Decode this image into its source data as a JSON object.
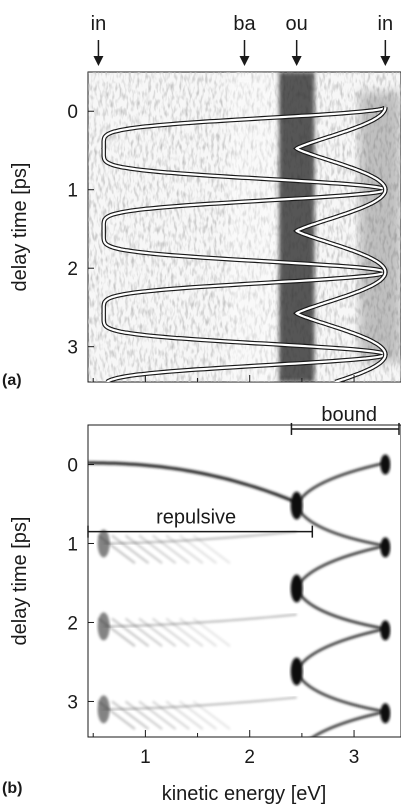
{
  "chart_data": [
    {
      "type": "heatmap",
      "panel_label": "(a)",
      "ylabel": "delay time [ps]",
      "x_ticks": [
        1,
        2,
        3
      ],
      "y_ticks": [
        "0",
        "1",
        "2",
        "3"
      ],
      "xlim": [
        0.45,
        3.45
      ],
      "ylim": [
        -0.5,
        3.45
      ],
      "top_markers": [
        {
          "label": "in",
          "x": 0.55
        },
        {
          "label": "ba",
          "x": 1.95
        },
        {
          "label": "ou",
          "x": 2.45
        },
        {
          "label": "in",
          "x": 3.3
        }
      ],
      "overlay_trajectory": {
        "x_min": 0.6,
        "x_outer": 3.3,
        "x_turn": 2.45,
        "period_ps": 1.05,
        "phase_ps": -0.05,
        "t_range": [
          -0.05,
          3.45
        ]
      },
      "colors": {
        "background": "#ffffff",
        "signal": "#1a1a1a",
        "curve": "#ffffff"
      }
    },
    {
      "type": "heatmap",
      "panel_label": "(b)",
      "ylabel": "delay time [ps]",
      "xlabel": "kinetic energy [eV]",
      "x_ticks": [
        1,
        2,
        3
      ],
      "y_ticks": [
        "0",
        "1",
        "2",
        "3"
      ],
      "xlim": [
        0.45,
        3.45
      ],
      "ylim": [
        -0.5,
        3.45
      ],
      "annotations": [
        {
          "label": "bound",
          "x_start": 2.4,
          "x_end": 3.45,
          "y": -0.45
        },
        {
          "label": "repulsive",
          "x_start": 0.45,
          "x_end": 2.6,
          "y": 0.85
        }
      ],
      "colors": {
        "background": "#ffffff",
        "signal": "#1a1a1a"
      }
    }
  ]
}
